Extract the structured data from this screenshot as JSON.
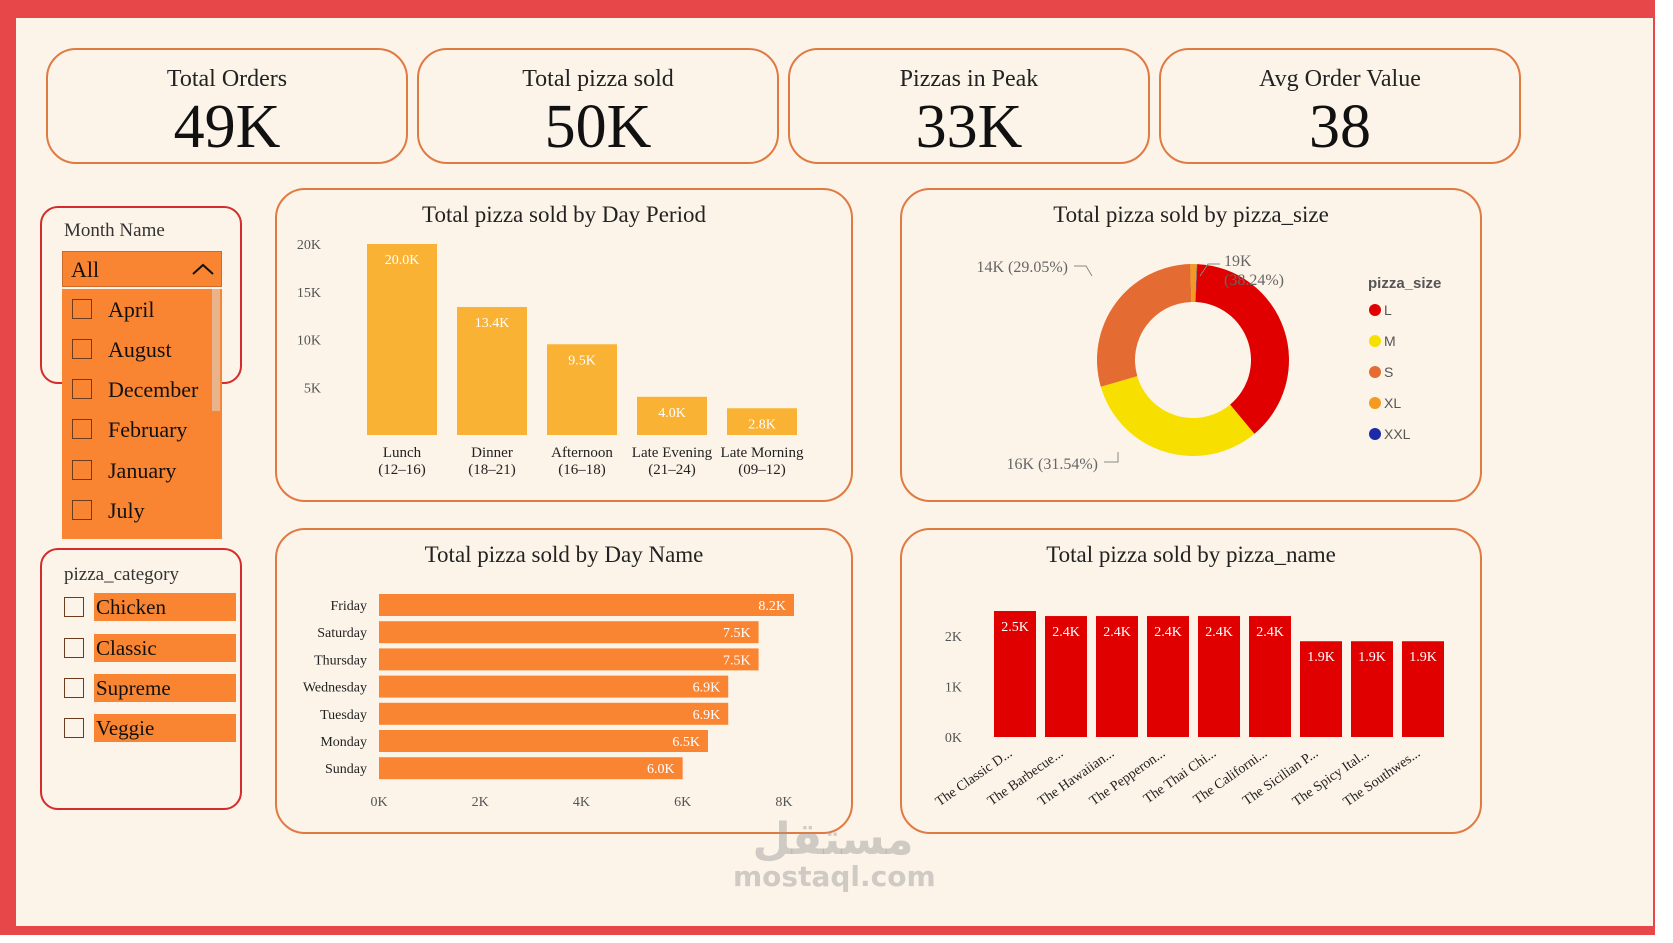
{
  "kpis": [
    {
      "title": "Total Orders",
      "value": "49K"
    },
    {
      "title": "Total pizza sold",
      "value": "50K"
    },
    {
      "title": "Pizzas in Peak",
      "value": "33K"
    },
    {
      "title": "Avg Order Value",
      "value": "38"
    }
  ],
  "month_slicer": {
    "title": "Month Name",
    "selected": "All",
    "options": [
      "April",
      "August",
      "December",
      "February",
      "January",
      "July"
    ]
  },
  "category_slicer": {
    "title": "pizza_category",
    "options": [
      "Chicken",
      "Classic",
      "Supreme",
      "Veggie"
    ]
  },
  "watermark": {
    "line1": "مستقل",
    "line2": "mostaql.com"
  },
  "colors": {
    "accent": "#f98533",
    "card_border": "#e07a43",
    "bar_yellow": "#f9b233",
    "bar_red": "#e00000",
    "frame": "#e8474a"
  },
  "chart_data": [
    {
      "type": "bar",
      "title": "Total pizza sold by Day Period",
      "categories": [
        "Lunch (12–16)",
        "Dinner (18–21)",
        "Afternoon (16–18)",
        "Late Evening (21–24)",
        "Late Morning (09–12)"
      ],
      "category_lines": [
        [
          "Lunch",
          "(12–16)"
        ],
        [
          "Dinner",
          "(18–21)"
        ],
        [
          "Afternoon",
          "(16–18)"
        ],
        [
          "Late Evening",
          "(21–24)"
        ],
        [
          "Late Morning",
          "(09–12)"
        ]
      ],
      "values": [
        20000,
        13400,
        9500,
        4000,
        2800
      ],
      "data_labels": [
        "20.0K",
        "13.4K",
        "9.5K",
        "4.0K",
        "2.8K"
      ],
      "yticks": [
        "20K",
        "15K",
        "10K",
        "5K"
      ],
      "ytick_values": [
        20000,
        15000,
        10000,
        5000
      ],
      "ylim": [
        0,
        20000
      ]
    },
    {
      "type": "pie",
      "title": "Total pizza sold by pizza_size",
      "legend_title": "pizza_size",
      "legend_position": "right",
      "labels": [
        "L",
        "M",
        "S",
        "XL",
        "XXL"
      ],
      "values": [
        38.24,
        31.54,
        29.05,
        1.1,
        0.07
      ],
      "colors": [
        "#e00000",
        "#f7e000",
        "#e46c32",
        "#f39a20",
        "#1a2aa8"
      ],
      "data_labels": [
        {
          "value": "19K",
          "pct": "(38.24%)"
        },
        {
          "value": "16K",
          "pct": "(31.54%)"
        },
        {
          "value": "14K",
          "pct": "(29.05%)"
        }
      ]
    },
    {
      "type": "bar",
      "orientation": "horizontal",
      "title": "Total pizza sold by Day Name",
      "categories": [
        "Friday",
        "Saturday",
        "Thursday",
        "Wednesday",
        "Tuesday",
        "Monday",
        "Sunday"
      ],
      "values": [
        8200,
        7500,
        7500,
        6900,
        6900,
        6500,
        6000
      ],
      "data_labels": [
        "8.2K",
        "7.5K",
        "7.5K",
        "6.9K",
        "6.9K",
        "6.5K",
        "6.0K"
      ],
      "xticks": [
        "0K",
        "2K",
        "4K",
        "6K",
        "8K"
      ],
      "xtick_values": [
        0,
        2000,
        4000,
        6000,
        8000
      ],
      "xlim": [
        0,
        8200
      ]
    },
    {
      "type": "bar",
      "title": "Total pizza sold by pizza_name",
      "categories": [
        "The Classic D...",
        "The Barbecue...",
        "The Hawaiian...",
        "The Pepperon...",
        "The Thai Chi...",
        "The Californi...",
        "The Sicilian P...",
        "The Spicy Ital...",
        "The Southwes..."
      ],
      "values": [
        2500,
        2400,
        2400,
        2400,
        2400,
        2400,
        1900,
        1900,
        1900
      ],
      "data_labels": [
        "2.5K",
        "2.4K",
        "2.4K",
        "2.4K",
        "2.4K",
        "2.4K",
        "1.9K",
        "1.9K",
        "1.9K"
      ],
      "yticks": [
        "2K",
        "1K",
        "0K"
      ],
      "ytick_values": [
        2000,
        1000,
        0
      ],
      "ylim": [
        0,
        2500
      ]
    }
  ]
}
